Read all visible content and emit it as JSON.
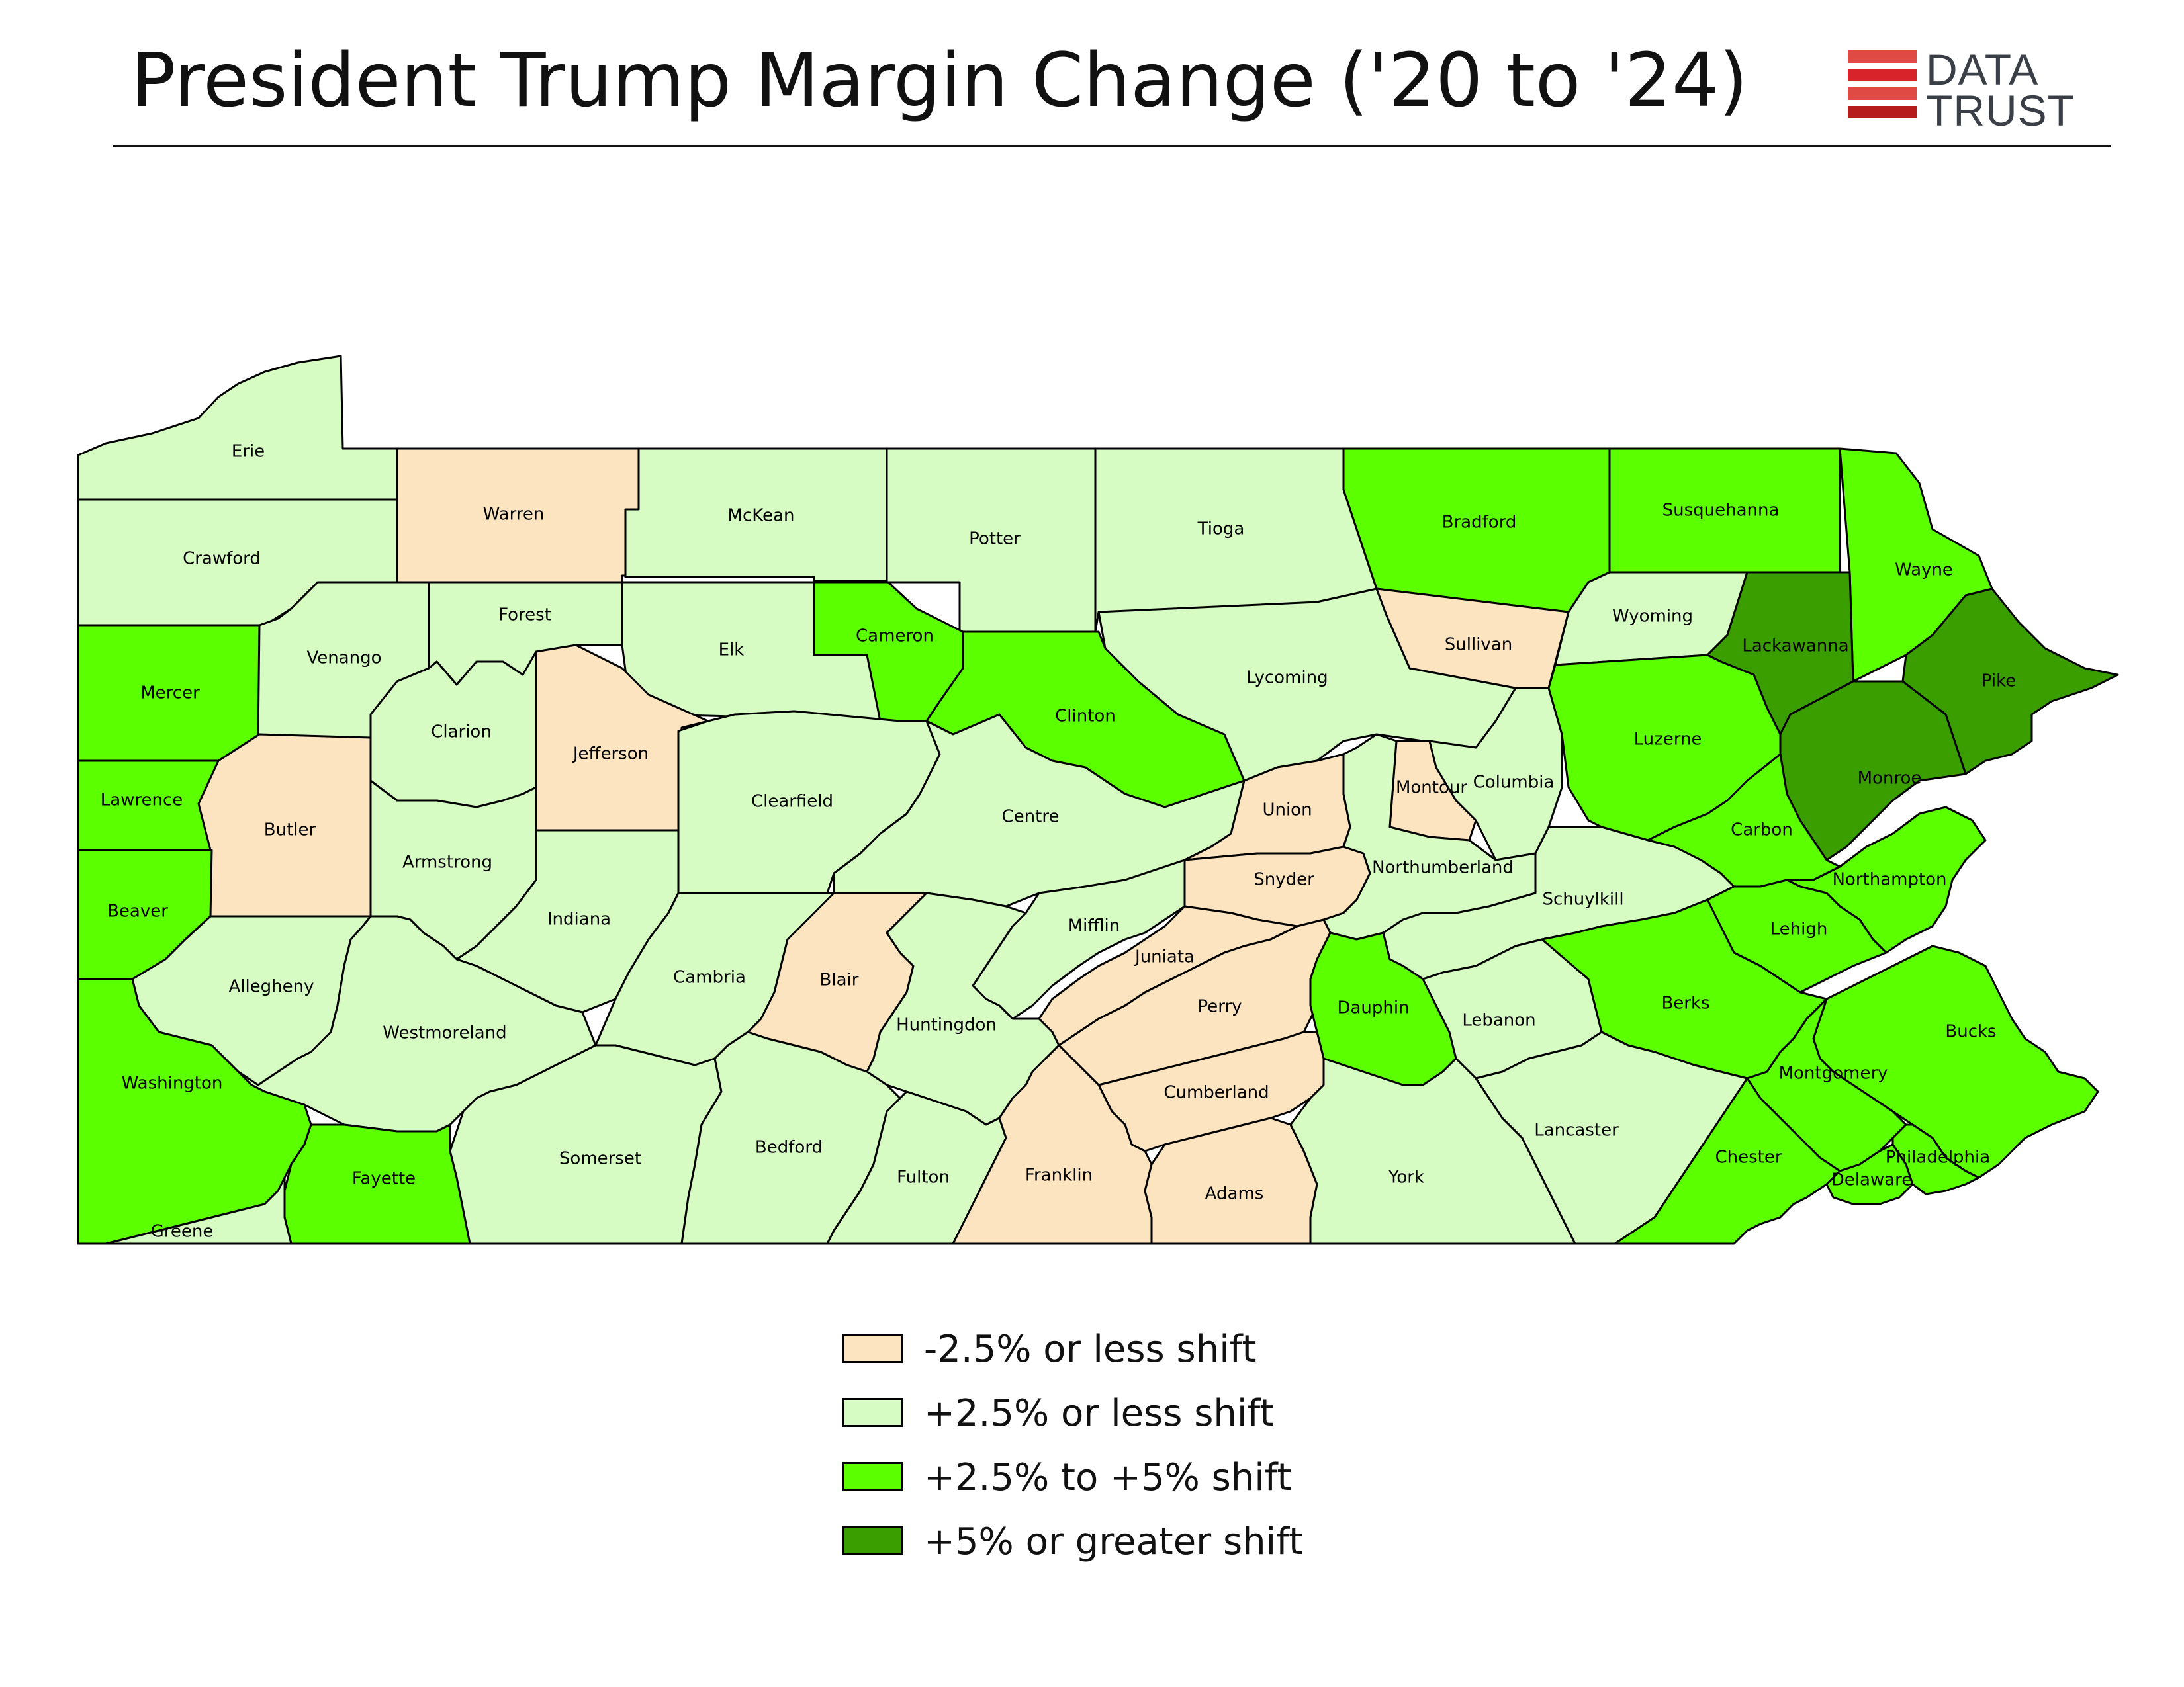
{
  "title": "President Trump Margin Change ('20 to '24)",
  "logo": {
    "line1": "DATA",
    "line2": "TRUST"
  },
  "colors": {
    "neg": "#fde4c0",
    "low": "#d6fcc4",
    "mid": "#5cff00",
    "high": "#3a9e00",
    "stroke": "#000000"
  },
  "legend": [
    {
      "key": "neg",
      "label": "-2.5% or less shift"
    },
    {
      "key": "low",
      "label": "+2.5% or less shift"
    },
    {
      "key": "mid",
      "label": "+2.5% to +5% shift"
    },
    {
      "key": "high",
      "label": "+5% or greater shift"
    }
  ],
  "counties": [
    {
      "name": "Erie",
      "cat": "low"
    },
    {
      "name": "Crawford",
      "cat": "low"
    },
    {
      "name": "Warren",
      "cat": "neg"
    },
    {
      "name": "McKean",
      "cat": "low"
    },
    {
      "name": "Potter",
      "cat": "low"
    },
    {
      "name": "Tioga",
      "cat": "low"
    },
    {
      "name": "Bradford",
      "cat": "mid"
    },
    {
      "name": "Susquehanna",
      "cat": "mid"
    },
    {
      "name": "Wayne",
      "cat": "mid"
    },
    {
      "name": "Mercer",
      "cat": "mid"
    },
    {
      "name": "Venango",
      "cat": "low"
    },
    {
      "name": "Forest",
      "cat": "low"
    },
    {
      "name": "Elk",
      "cat": "low"
    },
    {
      "name": "Cameron",
      "cat": "mid"
    },
    {
      "name": "Clinton",
      "cat": "mid"
    },
    {
      "name": "Lycoming",
      "cat": "low"
    },
    {
      "name": "Sullivan",
      "cat": "neg"
    },
    {
      "name": "Wyoming",
      "cat": "low"
    },
    {
      "name": "Lackawanna",
      "cat": "high"
    },
    {
      "name": "Pike",
      "cat": "high"
    },
    {
      "name": "Lawrence",
      "cat": "mid"
    },
    {
      "name": "Butler",
      "cat": "neg"
    },
    {
      "name": "Clarion",
      "cat": "low"
    },
    {
      "name": "Jefferson",
      "cat": "neg"
    },
    {
      "name": "Clearfield",
      "cat": "low"
    },
    {
      "name": "Centre",
      "cat": "low"
    },
    {
      "name": "Union",
      "cat": "neg"
    },
    {
      "name": "Montour",
      "cat": "neg"
    },
    {
      "name": "Columbia",
      "cat": "low"
    },
    {
      "name": "Luzerne",
      "cat": "mid"
    },
    {
      "name": "Monroe",
      "cat": "high"
    },
    {
      "name": "Beaver",
      "cat": "mid"
    },
    {
      "name": "Armstrong",
      "cat": "low"
    },
    {
      "name": "Indiana",
      "cat": "low"
    },
    {
      "name": "Snyder",
      "cat": "neg"
    },
    {
      "name": "Northumberland",
      "cat": "low"
    },
    {
      "name": "Carbon",
      "cat": "mid"
    },
    {
      "name": "Schuylkill",
      "cat": "low"
    },
    {
      "name": "Northampton",
      "cat": "mid"
    },
    {
      "name": "Allegheny",
      "cat": "low"
    },
    {
      "name": "Cambria",
      "cat": "low"
    },
    {
      "name": "Blair",
      "cat": "neg"
    },
    {
      "name": "Mifflin",
      "cat": "low"
    },
    {
      "name": "Juniata",
      "cat": "neg"
    },
    {
      "name": "Lehigh",
      "cat": "mid"
    },
    {
      "name": "Westmoreland",
      "cat": "low"
    },
    {
      "name": "Huntingdon",
      "cat": "low"
    },
    {
      "name": "Perry",
      "cat": "neg"
    },
    {
      "name": "Dauphin",
      "cat": "mid"
    },
    {
      "name": "Lebanon",
      "cat": "low"
    },
    {
      "name": "Berks",
      "cat": "mid"
    },
    {
      "name": "Bucks",
      "cat": "mid"
    },
    {
      "name": "Washington",
      "cat": "mid"
    },
    {
      "name": "Cumberland",
      "cat": "neg"
    },
    {
      "name": "Montgomery",
      "cat": "mid"
    },
    {
      "name": "Somerset",
      "cat": "low"
    },
    {
      "name": "Bedford",
      "cat": "low"
    },
    {
      "name": "Fulton",
      "cat": "low"
    },
    {
      "name": "Franklin",
      "cat": "neg"
    },
    {
      "name": "Adams",
      "cat": "neg"
    },
    {
      "name": "York",
      "cat": "low"
    },
    {
      "name": "Lancaster",
      "cat": "low"
    },
    {
      "name": "Chester",
      "cat": "mid"
    },
    {
      "name": "Delaware",
      "cat": "mid"
    },
    {
      "name": "Philadelphia",
      "cat": "mid"
    },
    {
      "name": "Fayette",
      "cat": "mid"
    },
    {
      "name": "Greene",
      "cat": "low"
    }
  ]
}
